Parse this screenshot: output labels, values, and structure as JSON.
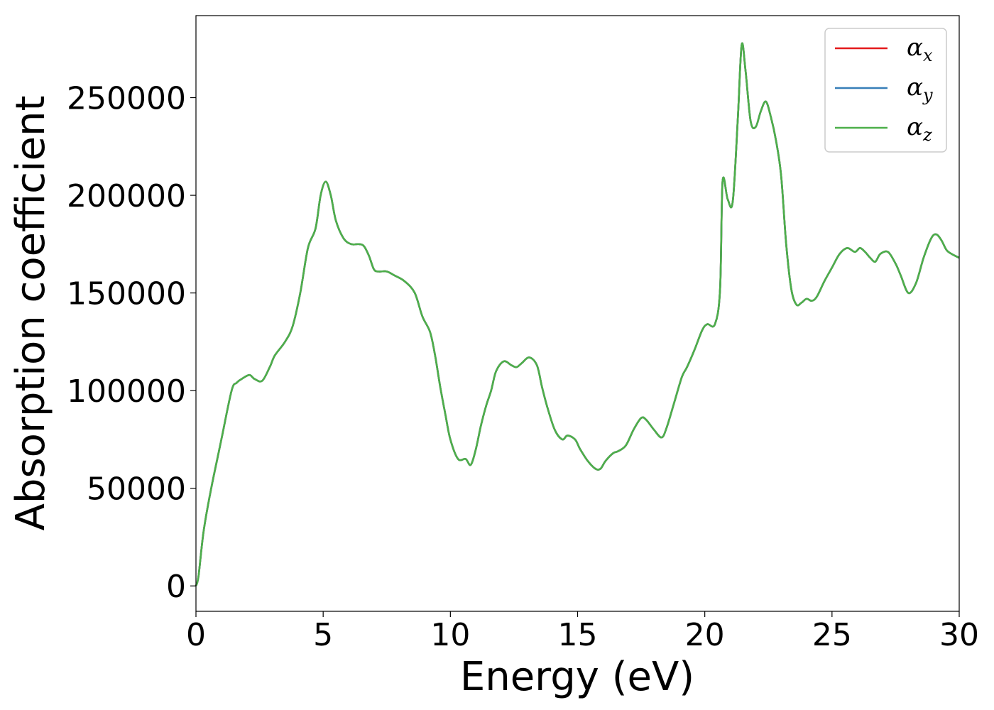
{
  "chart_data": {
    "type": "line",
    "xlabel": "Energy (eV)",
    "ylabel": "Absorption coefficient",
    "xlim": [
      0,
      30
    ],
    "ylim": [
      -13000,
      292000
    ],
    "xticks": [
      0,
      5,
      10,
      15,
      20,
      25,
      30
    ],
    "yticks": [
      0,
      50000,
      100000,
      150000,
      200000,
      250000
    ],
    "grid": false,
    "legend_position": "top-right",
    "series": [
      {
        "name": "α_x",
        "label_base": "α",
        "label_sub": "x",
        "color": "#e41a1c",
        "x": [
          0,
          0.1,
          0.3,
          0.6,
          1.0,
          1.4,
          1.6,
          1.8,
          2.1,
          2.3,
          2.6,
          2.9,
          3.1,
          3.5,
          3.8,
          4.1,
          4.4,
          4.7,
          4.9,
          5.1,
          5.3,
          5.5,
          5.8,
          6.1,
          6.4,
          6.6,
          6.8,
          7.0,
          7.2,
          7.5,
          7.8,
          8.2,
          8.6,
          8.9,
          9.2,
          9.4,
          9.6,
          9.8,
          10.0,
          10.3,
          10.6,
          10.8,
          11.0,
          11.2,
          11.4,
          11.6,
          11.8,
          12.1,
          12.4,
          12.6,
          12.8,
          13.1,
          13.4,
          13.6,
          13.8,
          14.1,
          14.4,
          14.6,
          14.9,
          15.1,
          15.4,
          15.7,
          15.9,
          16.1,
          16.4,
          16.6,
          16.9,
          17.2,
          17.5,
          17.7,
          18.0,
          18.3,
          18.5,
          18.8,
          19.1,
          19.3,
          19.6,
          19.9,
          20.1,
          20.4,
          20.6,
          20.7,
          20.9,
          21.1,
          21.3,
          21.45,
          21.6,
          21.8,
          22.0,
          22.2,
          22.4,
          22.6,
          22.8,
          23.0,
          23.2,
          23.4,
          23.6,
          23.8,
          24.0,
          24.2,
          24.4,
          24.7,
          25.0,
          25.3,
          25.6,
          25.9,
          26.1,
          26.3,
          26.5,
          26.7,
          26.9,
          27.2,
          27.5,
          27.7,
          28.0,
          28.3,
          28.6,
          28.9,
          29.1,
          29.3,
          29.5,
          29.7,
          30.0
        ],
        "y": [
          0,
          5000,
          28000,
          50000,
          75000,
          100000,
          104000,
          106000,
          108000,
          106000,
          105000,
          112000,
          118000,
          125000,
          133000,
          150000,
          173000,
          183000,
          200000,
          207000,
          200000,
          187000,
          178000,
          175000,
          175000,
          174000,
          169000,
          162000,
          161000,
          161000,
          159000,
          156000,
          150000,
          138000,
          130000,
          118000,
          102000,
          88000,
          75000,
          65000,
          65000,
          62000,
          70000,
          82000,
          92000,
          100000,
          110000,
          115000,
          113000,
          112000,
          114000,
          117000,
          113000,
          102000,
          92000,
          80000,
          75000,
          77000,
          75000,
          70000,
          64000,
          60000,
          60000,
          64000,
          68000,
          69000,
          72000,
          80000,
          86000,
          85000,
          80000,
          76000,
          81000,
          94000,
          107000,
          112000,
          121000,
          131000,
          134000,
          134000,
          152000,
          207000,
          198000,
          197000,
          240000,
          277000,
          264000,
          238000,
          235000,
          243000,
          248000,
          240000,
          228000,
          210000,
          175000,
          152000,
          144000,
          145000,
          147000,
          146000,
          148000,
          156000,
          163000,
          170000,
          173000,
          171000,
          173000,
          171000,
          168000,
          166000,
          170000,
          171000,
          165000,
          159000,
          150000,
          155000,
          168000,
          178000,
          180000,
          177000,
          172000,
          170000,
          168000
        ]
      },
      {
        "name": "α_y",
        "label_base": "α",
        "label_sub": "y",
        "color": "#377eb8",
        "same_as": 0
      },
      {
        "name": "α_z",
        "label_base": "α",
        "label_sub": "z",
        "color": "#4daf4a",
        "same_as": 0
      }
    ]
  }
}
